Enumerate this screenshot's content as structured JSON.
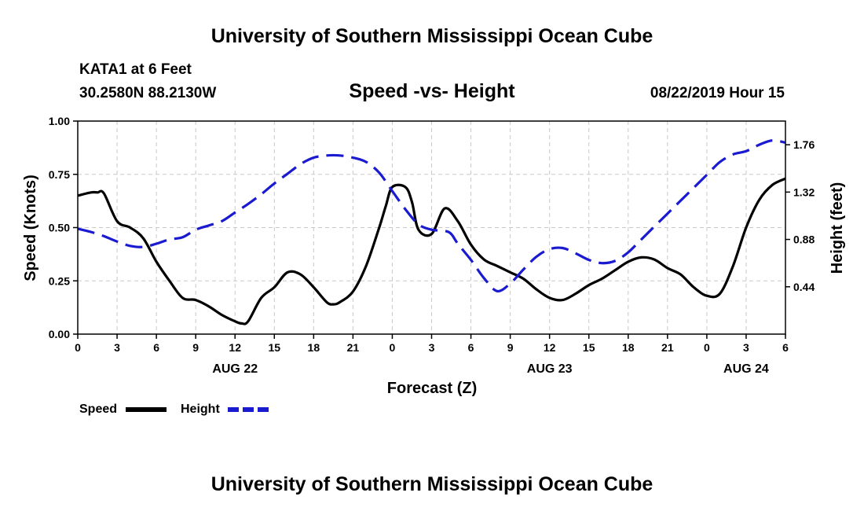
{
  "page": {
    "header_title": "University of Southern Mississippi Ocean Cube",
    "footer_title": "University of Southern Mississippi Ocean Cube",
    "station": "KATA1 at 6 Feet",
    "coords": "30.2580N 88.2130W",
    "chart_title": "Speed -vs- Height",
    "valid_time": "08/22/2019 Hour 15"
  },
  "colors": {
    "speed": "#000000",
    "height": "#1a1ad0",
    "grid": "#c8c8c8"
  },
  "chart_data": {
    "type": "line",
    "title": "Speed -vs- Height",
    "xlabel": "Forecast (Z)",
    "ylabel": "Speed (Knots)",
    "y2label": "Height (feet)",
    "xlim": [
      0,
      54
    ],
    "ylim": [
      0,
      1.0
    ],
    "y2lim": [
      0.0,
      1.98
    ],
    "x_ticks": [
      0,
      3,
      6,
      9,
      12,
      15,
      18,
      21,
      24,
      27,
      30,
      33,
      36,
      39,
      42,
      45,
      48,
      51,
      54
    ],
    "x_tick_labels": [
      "0",
      "3",
      "6",
      "9",
      "12",
      "15",
      "18",
      "21",
      "0",
      "3",
      "6",
      "9",
      "12",
      "15",
      "18",
      "21",
      "0",
      "3",
      "6"
    ],
    "y_ticks": [
      0,
      0.25,
      0.5,
      0.75,
      1.0
    ],
    "y_tick_labels": [
      "0.00",
      "0.25",
      "0.50",
      "0.75",
      "1.00"
    ],
    "y2_ticks": [
      0.44,
      0.88,
      1.32,
      1.76
    ],
    "y2_tick_labels": [
      "0.44",
      "0.88",
      "1.32",
      "1.76"
    ],
    "date_labels": [
      {
        "x": 12,
        "text": "AUG 22"
      },
      {
        "x": 36,
        "text": "AUG 23"
      },
      {
        "x": 51,
        "text": "AUG 24"
      }
    ],
    "series": [
      {
        "name": "Speed",
        "axis": "left",
        "style": "solid",
        "x": [
          0,
          1,
          1.5,
          2,
          3,
          4,
          5,
          6,
          7,
          8,
          9,
          10,
          11,
          12,
          12.5,
          13,
          14,
          15,
          16,
          17,
          18,
          19,
          19.5,
          20,
          21,
          22,
          23,
          23.5,
          24,
          25,
          25.5,
          26,
          27,
          28,
          29,
          30,
          31,
          32,
          33,
          34,
          35,
          36,
          37,
          38,
          39,
          40,
          41,
          42,
          43,
          44,
          45,
          46,
          47,
          48,
          49,
          50,
          51,
          52,
          53,
          54
        ],
        "values": [
          0.65,
          0.665,
          0.665,
          0.66,
          0.53,
          0.5,
          0.45,
          0.34,
          0.25,
          0.17,
          0.16,
          0.13,
          0.09,
          0.06,
          0.05,
          0.06,
          0.17,
          0.22,
          0.29,
          0.28,
          0.22,
          0.15,
          0.14,
          0.15,
          0.2,
          0.32,
          0.5,
          0.6,
          0.69,
          0.69,
          0.62,
          0.49,
          0.47,
          0.59,
          0.53,
          0.42,
          0.35,
          0.32,
          0.29,
          0.26,
          0.21,
          0.17,
          0.16,
          0.19,
          0.23,
          0.26,
          0.3,
          0.34,
          0.36,
          0.35,
          0.31,
          0.28,
          0.22,
          0.18,
          0.19,
          0.32,
          0.5,
          0.63,
          0.7,
          0.73
        ]
      },
      {
        "name": "Height",
        "axis": "right",
        "style": "dashed",
        "x": [
          0,
          1,
          2,
          3,
          4,
          5,
          6,
          7,
          8,
          9,
          10,
          11,
          12,
          13,
          14,
          15,
          16,
          17,
          18,
          19,
          20,
          21,
          22,
          23,
          24,
          25,
          26,
          27,
          28,
          28.5,
          29,
          30,
          31,
          32,
          33,
          34,
          35,
          36,
          37,
          38,
          39,
          40,
          41,
          42,
          43,
          44,
          45,
          46,
          47,
          48,
          49,
          50,
          51,
          52,
          53,
          54
        ],
        "values": [
          0.98,
          0.95,
          0.91,
          0.86,
          0.82,
          0.81,
          0.84,
          0.88,
          0.9,
          0.97,
          1.01,
          1.05,
          1.13,
          1.21,
          1.3,
          1.4,
          1.49,
          1.58,
          1.64,
          1.66,
          1.66,
          1.64,
          1.6,
          1.5,
          1.33,
          1.16,
          1.02,
          0.97,
          0.96,
          0.93,
          0.84,
          0.69,
          0.52,
          0.4,
          0.47,
          0.6,
          0.72,
          0.79,
          0.8,
          0.75,
          0.69,
          0.66,
          0.68,
          0.76,
          0.88,
          1.0,
          1.12,
          1.24,
          1.36,
          1.48,
          1.6,
          1.67,
          1.7,
          1.76,
          1.8,
          1.78
        ]
      }
    ],
    "legend": [
      {
        "label": "Speed",
        "style": "solid"
      },
      {
        "label": "Height",
        "style": "dashed"
      }
    ]
  }
}
